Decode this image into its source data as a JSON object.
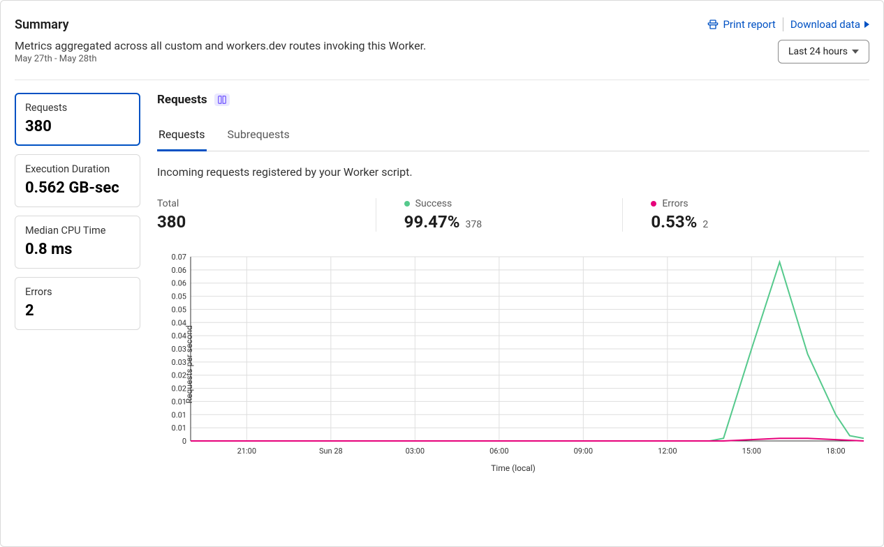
{
  "header": {
    "title": "Summary",
    "subtitle": "Metrics aggregated across all custom and workers.dev routes invoking this Worker.",
    "date_range": "May 27th - May 28th",
    "print_label": "Print report",
    "download_label": "Download data",
    "time_select_label": "Last 24 hours"
  },
  "stats": [
    {
      "label": "Requests",
      "value": "380",
      "active": true
    },
    {
      "label": "Execution Duration",
      "value": "0.562 GB-sec",
      "active": false
    },
    {
      "label": "Median CPU Time",
      "value": "0.8 ms",
      "active": false
    },
    {
      "label": "Errors",
      "value": "2",
      "active": false
    }
  ],
  "content": {
    "title": "Requests",
    "tabs": [
      {
        "label": "Requests",
        "active": true
      },
      {
        "label": "Subrequests",
        "active": false
      }
    ],
    "description": "Incoming requests registered by your Worker script.",
    "metrics": [
      {
        "label": "Total",
        "value": "380",
        "sub": "",
        "color": null
      },
      {
        "label": "Success",
        "value": "99.47%",
        "sub": "378",
        "color": "#55c98c"
      },
      {
        "label": "Errors",
        "value": "0.53%",
        "sub": "2",
        "color": "#e6007a"
      }
    ]
  },
  "chart": {
    "type": "line",
    "y_axis_title": "Requests per second",
    "x_axis_title": "Time (local)",
    "ylim": [
      0,
      0.07
    ],
    "y_ticks": [
      0,
      0.01,
      0.01,
      0.01,
      0.02,
      0.02,
      0.03,
      0.03,
      0.04,
      0.04,
      0.05,
      0.05,
      0.06,
      0.06,
      0.07
    ],
    "y_tick_labels": [
      "0",
      "0.01",
      "0.01",
      "0.01",
      "0.02",
      "0.02",
      "0.03",
      "0.03",
      "0.04",
      "0.04",
      "0.05",
      "0.05",
      "0.06",
      "0.06",
      "0.07"
    ],
    "x_domain": [
      0,
      24
    ],
    "x_ticks": [
      2,
      5,
      8,
      11,
      14,
      17,
      20,
      23
    ],
    "x_tick_labels": [
      "21:00",
      "Sun 28",
      "03:00",
      "06:00",
      "09:00",
      "12:00",
      "15:00",
      "18:00"
    ],
    "background_color": "#ffffff",
    "grid_color": "#dedede",
    "axis_color": "#333333",
    "tick_font_size": 11,
    "line_width": 2,
    "series": [
      {
        "name": "Success",
        "color": "#55c98c",
        "data": [
          [
            0,
            0
          ],
          [
            18.5,
            0
          ],
          [
            19,
            0.001
          ],
          [
            20,
            0.035
          ],
          [
            21,
            0.068
          ],
          [
            22,
            0.033
          ],
          [
            23,
            0.01
          ],
          [
            23.5,
            0.002
          ],
          [
            24,
            0.001
          ]
        ]
      },
      {
        "name": "Errors",
        "color": "#e6007a",
        "data": [
          [
            0,
            0
          ],
          [
            19,
            0
          ],
          [
            20,
            0.0005
          ],
          [
            21,
            0.001
          ],
          [
            22,
            0.001
          ],
          [
            23,
            0.0005
          ],
          [
            24,
            0
          ]
        ]
      }
    ]
  },
  "colors": {
    "accent": "#0051c3",
    "border": "#d9d9d9",
    "text_secondary": "#595959",
    "success": "#55c98c",
    "error": "#e6007a",
    "badge_bg": "#eae8ff",
    "badge_fg": "#6b4eff"
  }
}
